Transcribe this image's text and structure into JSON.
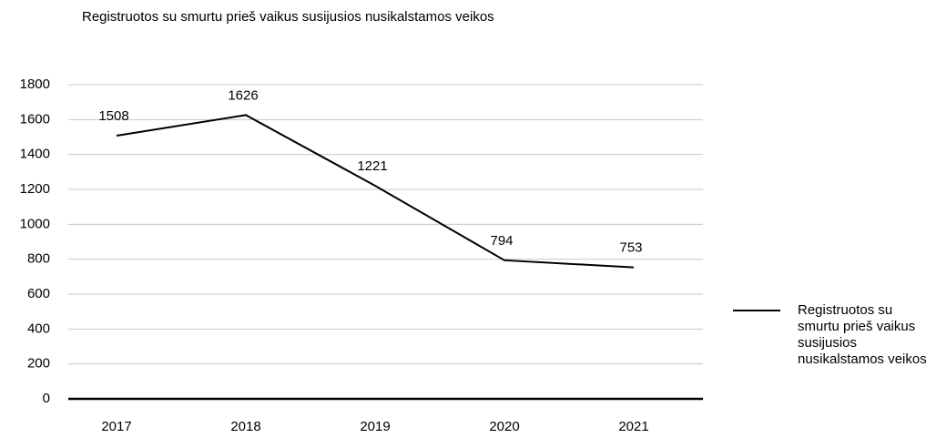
{
  "chart_data": {
    "type": "line",
    "title": "Registruotos su smurtu prieš vaikus susijusios nusikalstamos veikos",
    "categories": [
      "2017",
      "2018",
      "2019",
      "2020",
      "2021"
    ],
    "series": [
      {
        "name": "Registruotos su smurtu prieš vaikus susijusios nusikalstamos veikos",
        "color": "#000000",
        "values": [
          1508,
          1626,
          1221,
          794,
          753
        ]
      }
    ],
    "ylim": [
      0,
      1800
    ],
    "yticks": [
      0,
      200,
      400,
      600,
      800,
      1000,
      1200,
      1400,
      1600,
      1800
    ],
    "grid": true,
    "legend": "right",
    "data_labels": true
  }
}
